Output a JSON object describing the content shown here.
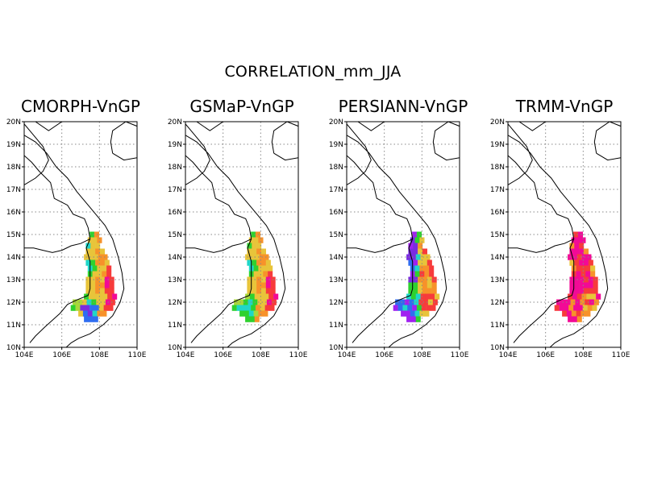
{
  "figure": {
    "title": "CORRELATION_mm_JJA"
  },
  "panels": [
    {
      "title": "CMORPH-VnGP",
      "scheme": "cmorph"
    },
    {
      "title": "GSMaP-VnGP",
      "scheme": "gsmap"
    },
    {
      "title": "PERSIANN-VnGP",
      "scheme": "persiann"
    },
    {
      "title": "TRMM-VnGP",
      "scheme": "trmm"
    }
  ],
  "axes": {
    "lat_ticks": [
      "20N",
      "19N",
      "18N",
      "17N",
      "16N",
      "15N",
      "14N",
      "13N",
      "12N",
      "11N",
      "10N"
    ],
    "lon_ticks": [
      "104E",
      "106E",
      "108E",
      "110E"
    ],
    "lon_range": [
      104,
      110
    ],
    "lat_range": [
      10,
      20
    ],
    "grid": "dotted"
  },
  "colors": {
    "magenta": "#f20a96",
    "red": "#f73b3b",
    "orange": "#f7922a",
    "yellow": "#e8c43a",
    "lightgreen": "#a8d83a",
    "green": "#2ed12e",
    "cyan": "#1fd6c8",
    "blue": "#2f6df0",
    "purple": "#7a2be0",
    "violet": "#a020f0"
  }
}
